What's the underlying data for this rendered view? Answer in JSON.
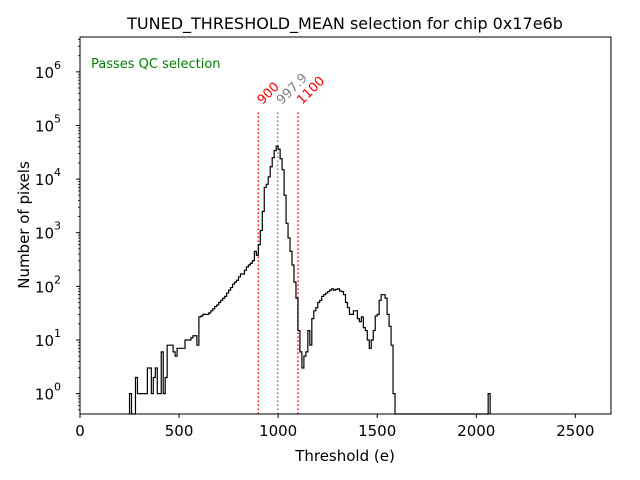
{
  "chart_data": {
    "type": "histogram",
    "title": "TUNED_THRESHOLD_MEAN selection for chip 0x17e6b",
    "xlabel": "Threshold (e)",
    "ylabel": "Number of pixels",
    "xlim": [
      0,
      2680
    ],
    "ylim_log10": [
      -0.38,
      6.65
    ],
    "bin_width": 10,
    "x_ticks": [
      {
        "value": 0,
        "label": "0"
      },
      {
        "value": 500,
        "label": "500"
      },
      {
        "value": 1000,
        "label": "1000"
      },
      {
        "value": 1500,
        "label": "1500"
      },
      {
        "value": 2000,
        "label": "2000"
      },
      {
        "value": 2500,
        "label": "2500"
      }
    ],
    "y_ticks": [
      {
        "exp": 0,
        "base": "10",
        "sup": "0"
      },
      {
        "exp": 1,
        "base": "10",
        "sup": "1"
      },
      {
        "exp": 2,
        "base": "10",
        "sup": "2"
      },
      {
        "exp": 3,
        "base": "10",
        "sup": "3"
      },
      {
        "exp": 4,
        "base": "10",
        "sup": "4"
      },
      {
        "exp": 5,
        "base": "10",
        "sup": "5"
      },
      {
        "exp": 6,
        "base": "10",
        "sup": "6"
      }
    ],
    "bins": [
      [
        250,
        1
      ],
      [
        260,
        0
      ],
      [
        270,
        0
      ],
      [
        280,
        2
      ],
      [
        290,
        1
      ],
      [
        300,
        1
      ],
      [
        310,
        1
      ],
      [
        320,
        1
      ],
      [
        330,
        1
      ],
      [
        340,
        3
      ],
      [
        350,
        3
      ],
      [
        360,
        1
      ],
      [
        370,
        2
      ],
      [
        380,
        3
      ],
      [
        390,
        1
      ],
      [
        400,
        1
      ],
      [
        410,
        6
      ],
      [
        420,
        1
      ],
      [
        430,
        2
      ],
      [
        440,
        8
      ],
      [
        450,
        8
      ],
      [
        460,
        8
      ],
      [
        470,
        6
      ],
      [
        480,
        5
      ],
      [
        490,
        7
      ],
      [
        500,
        7
      ],
      [
        510,
        7
      ],
      [
        520,
        7
      ],
      [
        530,
        10
      ],
      [
        540,
        10
      ],
      [
        550,
        10
      ],
      [
        560,
        11
      ],
      [
        570,
        12
      ],
      [
        580,
        12
      ],
      [
        590,
        8
      ],
      [
        600,
        27
      ],
      [
        610,
        28
      ],
      [
        620,
        30
      ],
      [
        630,
        30
      ],
      [
        640,
        30
      ],
      [
        650,
        32
      ],
      [
        660,
        35
      ],
      [
        670,
        38
      ],
      [
        680,
        42
      ],
      [
        690,
        45
      ],
      [
        700,
        50
      ],
      [
        710,
        55
      ],
      [
        720,
        60
      ],
      [
        730,
        65
      ],
      [
        740,
        75
      ],
      [
        750,
        85
      ],
      [
        760,
        95
      ],
      [
        770,
        110
      ],
      [
        780,
        120
      ],
      [
        790,
        130
      ],
      [
        800,
        150
      ],
      [
        810,
        170
      ],
      [
        820,
        170
      ],
      [
        830,
        200
      ],
      [
        840,
        230
      ],
      [
        850,
        250
      ],
      [
        860,
        270
      ],
      [
        870,
        300
      ],
      [
        880,
        450
      ],
      [
        890,
        380
      ],
      [
        900,
        600
      ],
      [
        910,
        1100
      ],
      [
        920,
        2500
      ],
      [
        930,
        7000
      ],
      [
        940,
        8000
      ],
      [
        950,
        11000
      ],
      [
        960,
        17000
      ],
      [
        970,
        25000
      ],
      [
        980,
        34000
      ],
      [
        990,
        41000
      ],
      [
        1000,
        36000
      ],
      [
        1010,
        24000
      ],
      [
        1020,
        15000
      ],
      [
        1030,
        5000
      ],
      [
        1040,
        1500
      ],
      [
        1050,
        800
      ],
      [
        1060,
        450
      ],
      [
        1070,
        250
      ],
      [
        1080,
        120
      ],
      [
        1090,
        60
      ],
      [
        1100,
        15
      ],
      [
        1110,
        6
      ],
      [
        1120,
        3
      ],
      [
        1130,
        5
      ],
      [
        1140,
        6
      ],
      [
        1150,
        15
      ],
      [
        1160,
        8
      ],
      [
        1170,
        25
      ],
      [
        1180,
        35
      ],
      [
        1190,
        40
      ],
      [
        1200,
        50
      ],
      [
        1210,
        55
      ],
      [
        1220,
        65
      ],
      [
        1230,
        70
      ],
      [
        1240,
        75
      ],
      [
        1250,
        80
      ],
      [
        1260,
        85
      ],
      [
        1270,
        90
      ],
      [
        1280,
        85
      ],
      [
        1290,
        88
      ],
      [
        1300,
        90
      ],
      [
        1310,
        82
      ],
      [
        1320,
        80
      ],
      [
        1330,
        70
      ],
      [
        1340,
        50
      ],
      [
        1350,
        40
      ],
      [
        1360,
        30
      ],
      [
        1370,
        30
      ],
      [
        1380,
        35
      ],
      [
        1390,
        35
      ],
      [
        1400,
        25
      ],
      [
        1410,
        22
      ],
      [
        1420,
        27
      ],
      [
        1430,
        17
      ],
      [
        1440,
        15
      ],
      [
        1450,
        10
      ],
      [
        1460,
        7
      ],
      [
        1470,
        10
      ],
      [
        1480,
        15
      ],
      [
        1490,
        28
      ],
      [
        1500,
        30
      ],
      [
        1510,
        55
      ],
      [
        1520,
        70
      ],
      [
        1530,
        70
      ],
      [
        1540,
        60
      ],
      [
        1550,
        30
      ],
      [
        1560,
        18
      ],
      [
        1570,
        8
      ],
      [
        1580,
        1
      ],
      [
        1590,
        0
      ],
      [
        1600,
        0
      ],
      [
        1610,
        0
      ],
      [
        1620,
        0
      ],
      [
        1630,
        0
      ],
      [
        1640,
        0
      ],
      [
        1650,
        0
      ],
      [
        1660,
        0
      ],
      [
        1670,
        0
      ],
      [
        1680,
        0
      ],
      [
        1690,
        0
      ],
      [
        1700,
        0
      ],
      [
        1710,
        0
      ],
      [
        1720,
        0
      ],
      [
        1730,
        0
      ],
      [
        1740,
        0
      ],
      [
        1750,
        0
      ],
      [
        1760,
        0
      ],
      [
        1770,
        0
      ],
      [
        1780,
        0
      ],
      [
        1790,
        0
      ],
      [
        1800,
        0
      ],
      [
        1810,
        0
      ],
      [
        1820,
        0
      ],
      [
        1830,
        0
      ],
      [
        1840,
        0
      ],
      [
        1850,
        0
      ],
      [
        1860,
        0
      ],
      [
        1870,
        0
      ],
      [
        1880,
        0
      ],
      [
        1890,
        0
      ],
      [
        1900,
        0
      ],
      [
        1910,
        0
      ],
      [
        1920,
        0
      ],
      [
        1930,
        0
      ],
      [
        1940,
        0
      ],
      [
        1950,
        0
      ],
      [
        1960,
        0
      ],
      [
        1970,
        0
      ],
      [
        1980,
        0
      ],
      [
        1990,
        0
      ],
      [
        2000,
        0
      ],
      [
        2010,
        0
      ],
      [
        2020,
        0
      ],
      [
        2030,
        0
      ],
      [
        2040,
        0
      ],
      [
        2050,
        0
      ],
      [
        2060,
        1
      ]
    ],
    "vlines": [
      {
        "x": 900,
        "label": "900",
        "color": "#ff0000",
        "style": "dotted"
      },
      {
        "x": 997.9,
        "label": "997.9",
        "color": "#808080",
        "style": "dotted"
      },
      {
        "x": 1100,
        "label": "1100",
        "color": "#ff0000",
        "style": "dotted"
      }
    ],
    "annotation": {
      "text": "Passes QC selection",
      "color": "#008000",
      "position": "top-left"
    },
    "line_color": "#000000"
  }
}
